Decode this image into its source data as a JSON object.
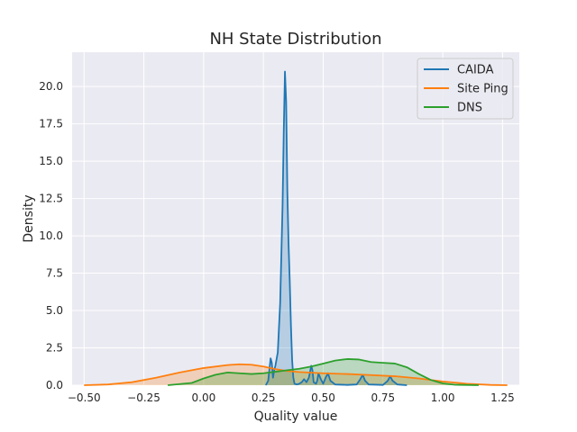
{
  "chart_data": {
    "type": "area",
    "title": "NH State Distribution",
    "xlabel": "Quality value",
    "ylabel": "Density",
    "xlim": [
      -0.55,
      1.32
    ],
    "ylim": [
      0,
      22.3
    ],
    "xticks": [
      "−0.50",
      "−0.25",
      "0.00",
      "0.25",
      "0.50",
      "0.75",
      "1.00",
      "1.25"
    ],
    "xtick_values": [
      -0.5,
      -0.25,
      0,
      0.25,
      0.5,
      0.75,
      1.0,
      1.25
    ],
    "yticks": [
      "0.0",
      "2.5",
      "5.0",
      "7.5",
      "10.0",
      "12.5",
      "15.0",
      "17.5",
      "20.0"
    ],
    "ytick_values": [
      0,
      2.5,
      5,
      7.5,
      10,
      12.5,
      15,
      17.5,
      20
    ],
    "grid": true,
    "legend_position": "top-right",
    "series": [
      {
        "name": "CAIDA",
        "color": "#1f77b4",
        "x": [
          0.26,
          0.27,
          0.28,
          0.285,
          0.29,
          0.295,
          0.3,
          0.31,
          0.32,
          0.33,
          0.335,
          0.34,
          0.345,
          0.35,
          0.355,
          0.36,
          0.365,
          0.37,
          0.375,
          0.38,
          0.39,
          0.4,
          0.41,
          0.42,
          0.43,
          0.44,
          0.45,
          0.455,
          0.46,
          0.47,
          0.475,
          0.48,
          0.49,
          0.5,
          0.51,
          0.52,
          0.53,
          0.55,
          0.6,
          0.64,
          0.655,
          0.665,
          0.675,
          0.69,
          0.75,
          0.77,
          0.78,
          0.79,
          0.81,
          0.85
        ],
        "y": [
          0.0,
          0.3,
          1.8,
          1.5,
          0.5,
          1.0,
          1.3,
          2.2,
          5.5,
          12.0,
          17.0,
          21.0,
          19.0,
          13.0,
          9.5,
          7.0,
          4.0,
          1.7,
          0.5,
          0.1,
          0.05,
          0.1,
          0.2,
          0.4,
          0.2,
          0.5,
          1.3,
          1.0,
          0.2,
          0.1,
          0.3,
          0.8,
          0.4,
          0.1,
          0.5,
          0.8,
          0.3,
          0.05,
          0.02,
          0.05,
          0.4,
          0.7,
          0.3,
          0.05,
          0.02,
          0.3,
          0.6,
          0.3,
          0.05,
          0.0
        ]
      },
      {
        "name": "Site Ping",
        "color": "#ff7f0e",
        "x": [
          -0.5,
          -0.4,
          -0.3,
          -0.2,
          -0.1,
          0.0,
          0.1,
          0.15,
          0.2,
          0.25,
          0.3,
          0.35,
          0.4,
          0.5,
          0.6,
          0.7,
          0.8,
          0.9,
          1.0,
          1.1,
          1.2,
          1.27
        ],
        "y": [
          0.0,
          0.05,
          0.2,
          0.5,
          0.85,
          1.15,
          1.35,
          1.4,
          1.37,
          1.25,
          1.08,
          0.95,
          0.88,
          0.8,
          0.75,
          0.68,
          0.6,
          0.45,
          0.25,
          0.1,
          0.02,
          0.0
        ]
      },
      {
        "name": "DNS",
        "color": "#2ca02c",
        "x": [
          -0.15,
          -0.05,
          0.0,
          0.05,
          0.1,
          0.15,
          0.2,
          0.25,
          0.3,
          0.35,
          0.4,
          0.45,
          0.5,
          0.55,
          0.6,
          0.65,
          0.7,
          0.75,
          0.8,
          0.85,
          0.9,
          0.95,
          1.0,
          1.05,
          1.15
        ],
        "y": [
          0.0,
          0.15,
          0.45,
          0.7,
          0.85,
          0.8,
          0.75,
          0.8,
          0.9,
          1.0,
          1.1,
          1.25,
          1.45,
          1.65,
          1.75,
          1.72,
          1.55,
          1.5,
          1.45,
          1.2,
          0.75,
          0.35,
          0.12,
          0.03,
          0.0
        ]
      }
    ]
  }
}
